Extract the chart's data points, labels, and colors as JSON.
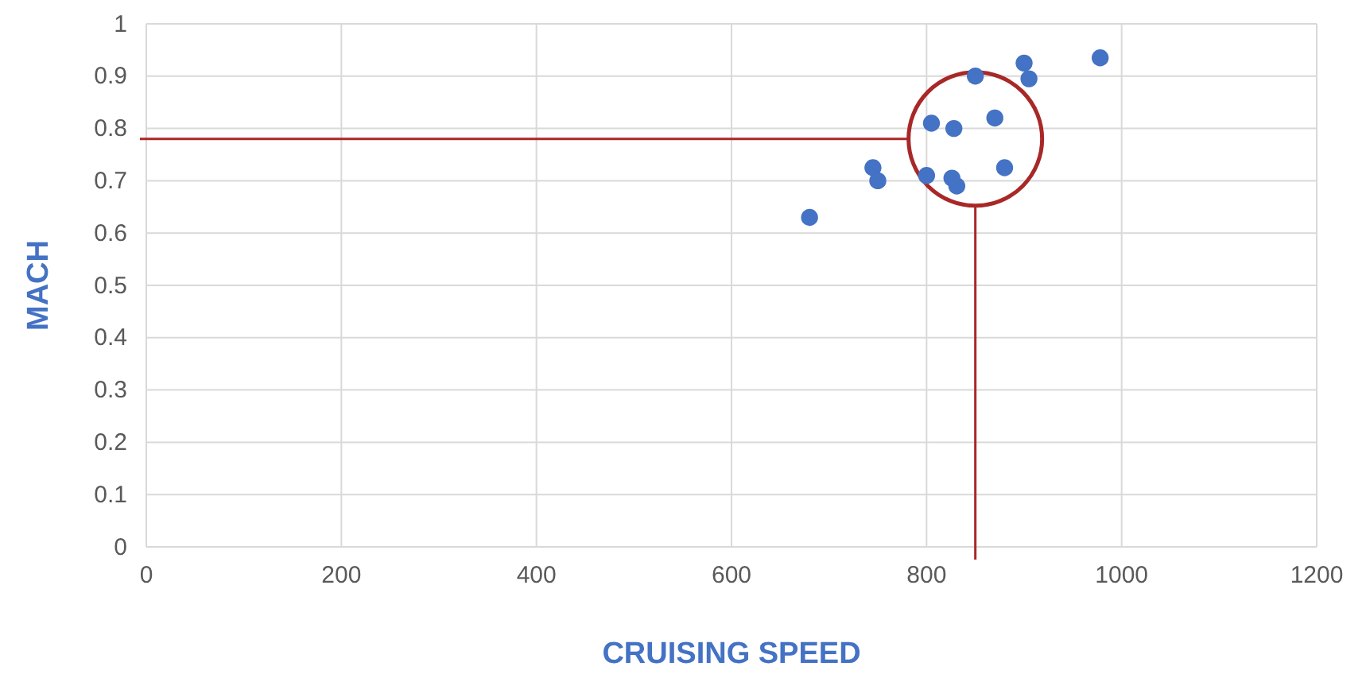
{
  "chart_data": {
    "type": "scatter",
    "xlabel": "CRUISING SPEED",
    "ylabel": "MACH",
    "x": [
      680,
      745,
      750,
      800,
      805,
      828,
      826,
      831,
      850,
      870,
      880,
      900,
      905,
      978
    ],
    "values": [
      0.63,
      0.725,
      0.7,
      0.71,
      0.81,
      0.8,
      0.705,
      0.69,
      0.9,
      0.82,
      0.725,
      0.925,
      0.895,
      0.935
    ],
    "color": "#4472c4",
    "marker": "circle",
    "xlim": [
      0,
      1200
    ],
    "xticks": [
      0,
      200,
      400,
      600,
      800,
      1000,
      1200
    ],
    "ylim": [
      0,
      1
    ],
    "yticks": [
      0,
      0.1,
      0.2,
      0.3,
      0.4,
      0.5,
      0.6,
      0.7,
      0.8,
      0.9,
      1
    ],
    "grid": true,
    "ref_lines": [
      {
        "axis": "y",
        "value": 0.78,
        "color": "#a82828"
      },
      {
        "axis": "x",
        "value": 850,
        "color": "#a82828"
      }
    ]
  }
}
